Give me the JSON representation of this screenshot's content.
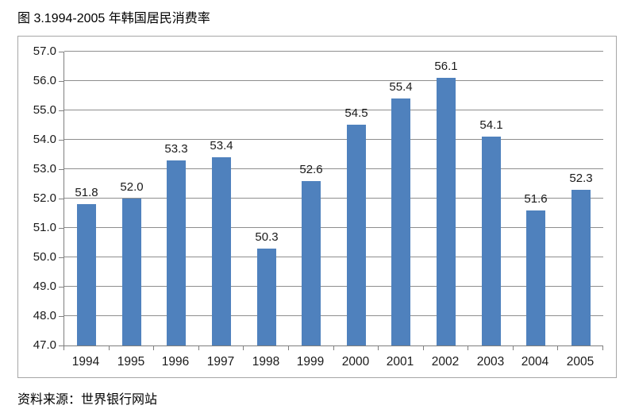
{
  "title": "图 3.1994-2005 年韩国居民消费率",
  "source": "资料来源：世界银行网站",
  "chart_data": {
    "type": "bar",
    "title": "图 3.1994-2005 年韩国居民消费率",
    "categories": [
      "1994",
      "1995",
      "1996",
      "1997",
      "1998",
      "1999",
      "2000",
      "2001",
      "2002",
      "2003",
      "2004",
      "2005"
    ],
    "values": [
      51.8,
      52.0,
      53.3,
      53.4,
      50.3,
      52.6,
      54.5,
      55.4,
      56.1,
      54.1,
      51.6,
      52.3
    ],
    "value_labels": [
      "51.8",
      "52.0",
      "53.3",
      "53.4",
      "50.3",
      "52.6",
      "54.5",
      "55.4",
      "56.1",
      "54.1",
      "51.6",
      "52.3"
    ],
    "xlabel": "",
    "ylabel": "",
    "ylim": [
      47.0,
      57.0
    ],
    "ytick_step": 1.0,
    "ytick_labels": [
      "47.0",
      "48.0",
      "49.0",
      "50.0",
      "51.0",
      "52.0",
      "53.0",
      "54.0",
      "55.0",
      "56.0",
      "57.0"
    ],
    "grid": "horizontal",
    "legend": "none",
    "bar_color": "#4f81bd",
    "gridline_color": "#8e8e8e",
    "axis_color": "#7f7f7f",
    "box_border_color": "#a6a6a6",
    "source": "资料来源：世界银行网站"
  }
}
